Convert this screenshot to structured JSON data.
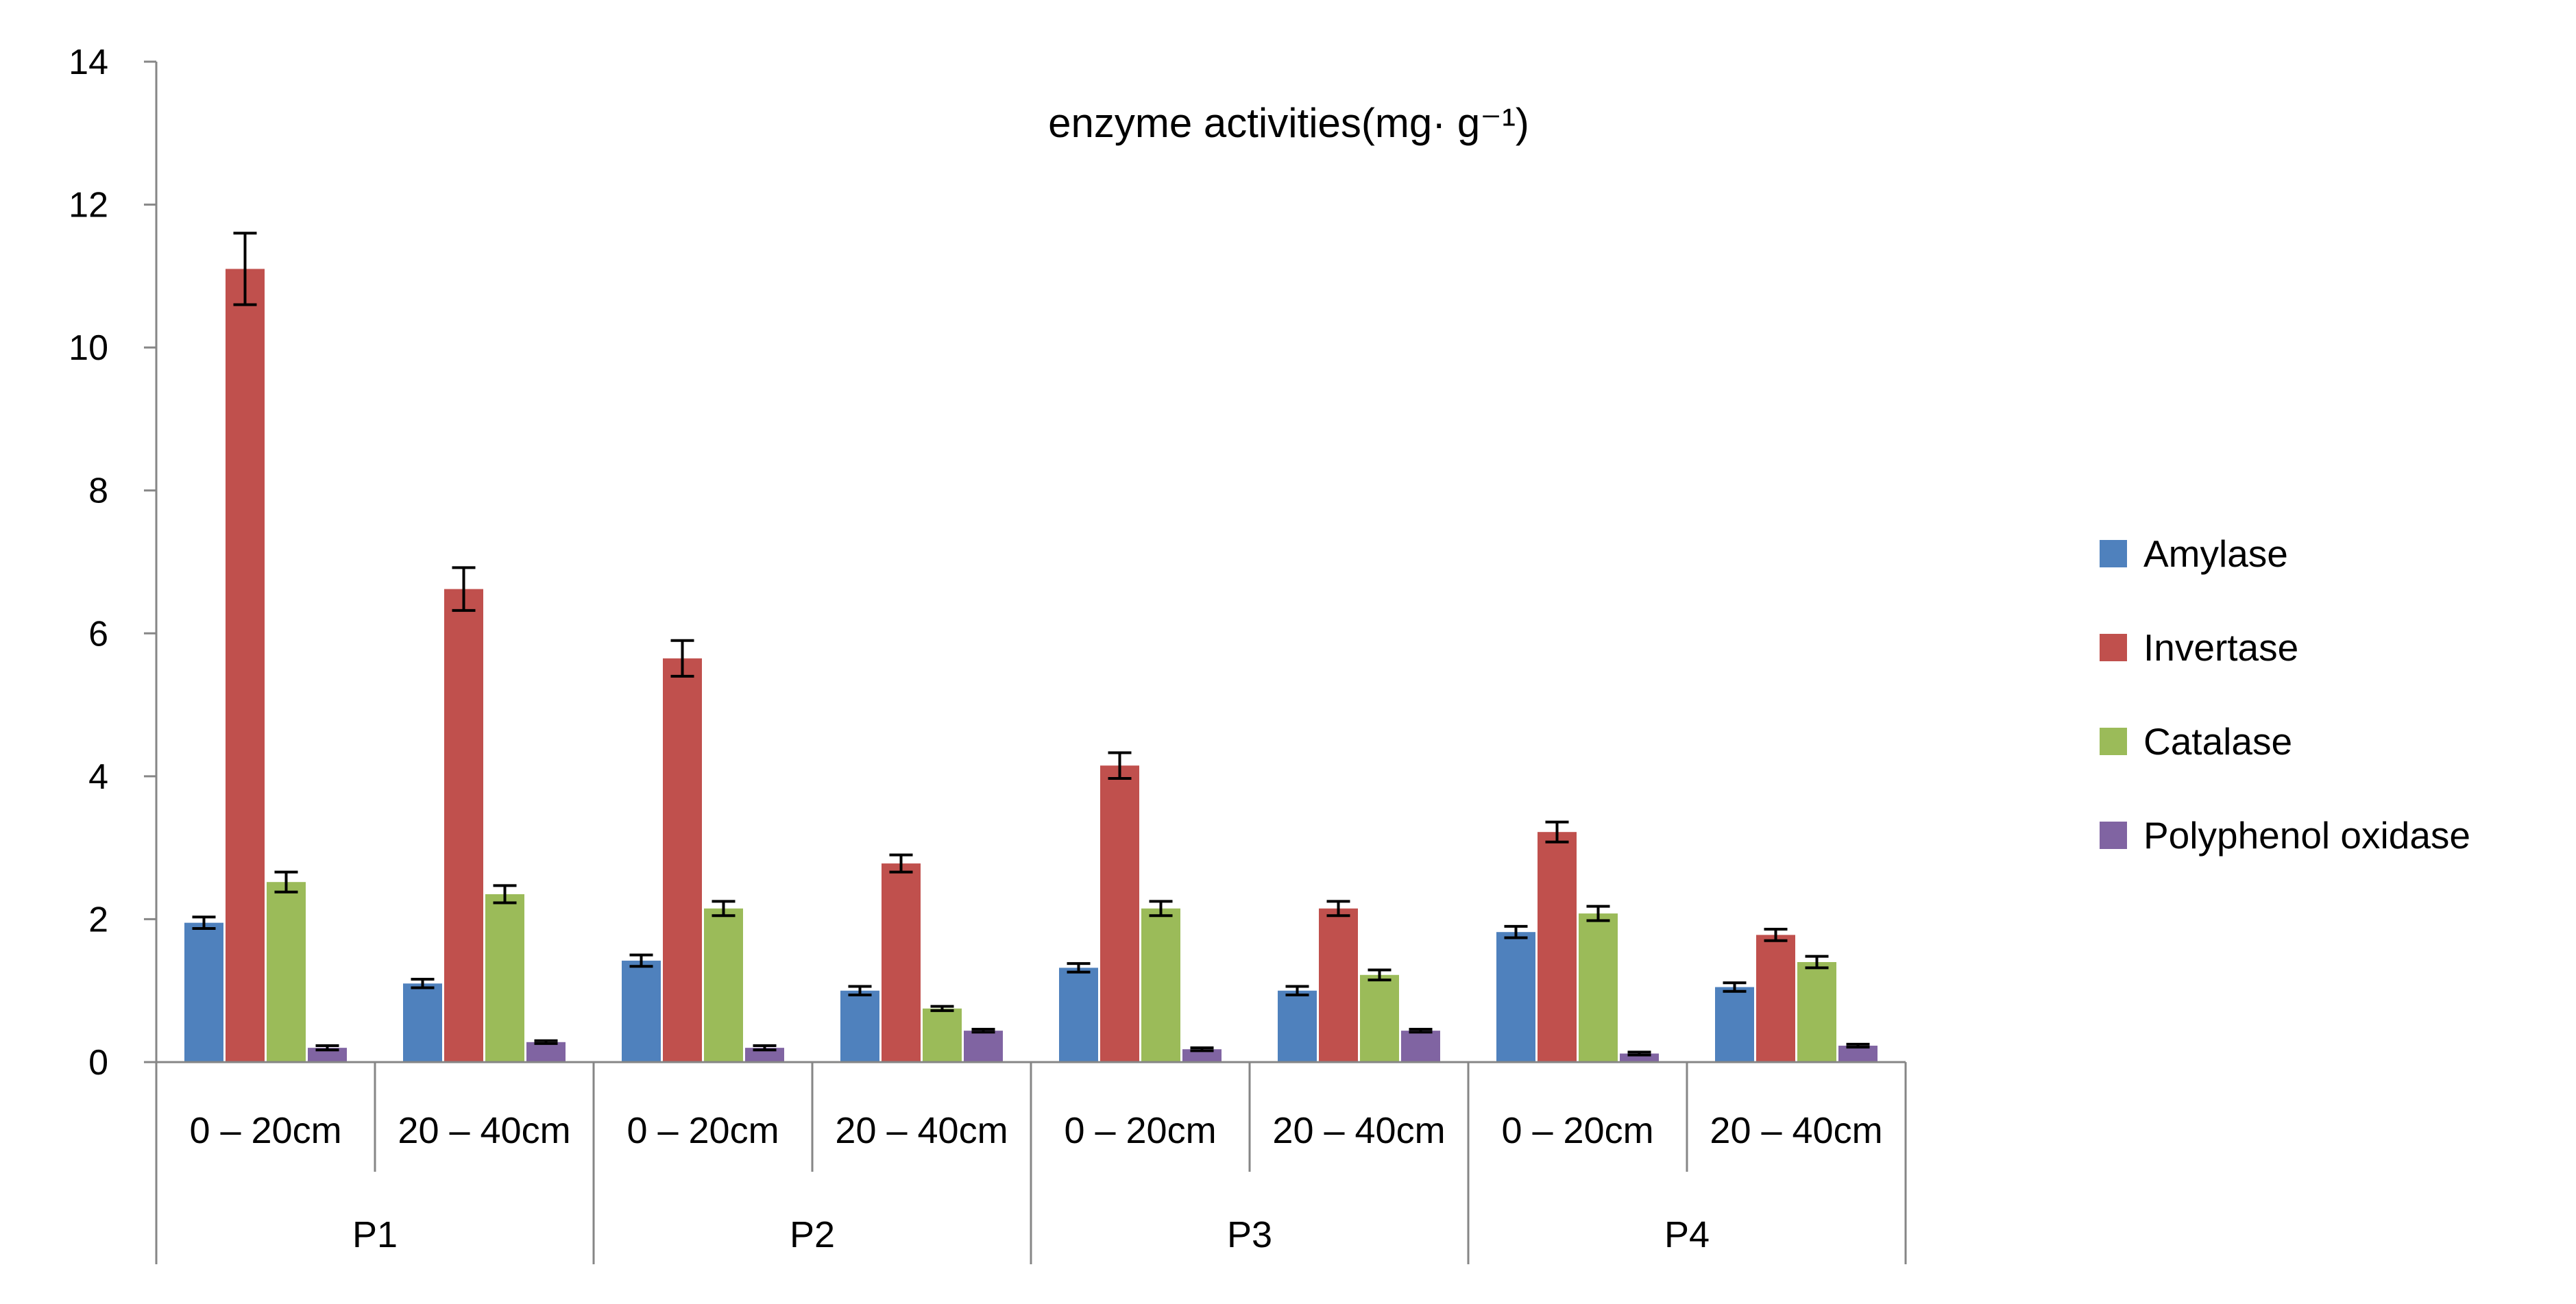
{
  "chart_data": {
    "type": "bar",
    "title": "enzyme activities(mg· g⁻¹)",
    "xlabel": "",
    "ylabel": "",
    "ylim": [
      0,
      14
    ],
    "yticks": [
      "0",
      "2",
      "4",
      "6",
      "8",
      "10",
      "12",
      "14"
    ],
    "groups": [
      "P1",
      "P2",
      "P3",
      "P4"
    ],
    "categories": [
      "0 – 20cm",
      "20 – 40cm",
      "0 – 20cm",
      "20 – 40cm",
      "0 – 20cm",
      "20 – 40cm",
      "0 – 20cm",
      "20 – 40cm"
    ],
    "legend_position": "right",
    "grid": false,
    "series": [
      {
        "name": "Amylase",
        "color": "#4F81BD",
        "values": [
          1.95,
          1.1,
          1.42,
          1.0,
          1.32,
          1.0,
          1.82,
          1.05
        ],
        "errors": [
          0.08,
          0.06,
          0.08,
          0.06,
          0.06,
          0.06,
          0.08,
          0.06
        ]
      },
      {
        "name": "Invertase",
        "color": "#C0504D",
        "values": [
          11.1,
          6.62,
          5.65,
          2.78,
          4.15,
          2.15,
          3.22,
          1.78
        ],
        "errors": [
          0.5,
          0.3,
          0.25,
          0.12,
          0.18,
          0.1,
          0.14,
          0.08
        ]
      },
      {
        "name": "Catalase",
        "color": "#9BBB59",
        "values": [
          2.52,
          2.35,
          2.15,
          0.75,
          2.15,
          1.22,
          2.08,
          1.4
        ],
        "errors": [
          0.14,
          0.12,
          0.1,
          0.03,
          0.1,
          0.07,
          0.1,
          0.08
        ]
      },
      {
        "name": "Polyphenol oxidase",
        "color": "#8064A2",
        "values": [
          0.2,
          0.28,
          0.2,
          0.44,
          0.18,
          0.44,
          0.12,
          0.23
        ],
        "errors": [
          0.03,
          0.02,
          0.03,
          0.02,
          0.02,
          0.02,
          0.02,
          0.02
        ]
      }
    ]
  }
}
